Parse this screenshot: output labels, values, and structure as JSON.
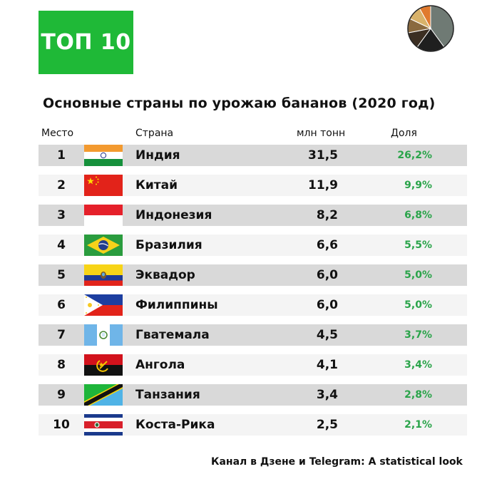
{
  "badge": "ТОП 10",
  "title": "Основные страны по урожаю бананов (2020 год)",
  "headers": {
    "rank": "Место",
    "country": "Страна",
    "value": "млн тонн",
    "share": "Доля"
  },
  "footer": "Канал в Дзене и Telegram: A statistical look",
  "logo_colors": [
    "#6f7a74",
    "#1f1f1f",
    "#3b2e22",
    "#8a6a3f",
    "#d8b26a",
    "#e07a2e"
  ],
  "chart_data": {
    "type": "table",
    "title": "Основные страны по урожаю бананов (2020 год)",
    "columns": [
      "Место",
      "Страна",
      "млн тонн",
      "Доля"
    ],
    "rows": [
      {
        "rank": "1",
        "country": "Индия",
        "value": "31,5",
        "share": "26,2%",
        "flag": "india"
      },
      {
        "rank": "2",
        "country": "Китай",
        "value": "11,9",
        "share": "9,9%",
        "flag": "china"
      },
      {
        "rank": "3",
        "country": "Индонезия",
        "value": "8,2",
        "share": "6,8%",
        "flag": "indonesia"
      },
      {
        "rank": "4",
        "country": "Бразилия",
        "value": "6,6",
        "share": "5,5%",
        "flag": "brazil"
      },
      {
        "rank": "5",
        "country": "Эквадор",
        "value": "6,0",
        "share": "5,0%",
        "flag": "ecuador"
      },
      {
        "rank": "6",
        "country": "Филиппины",
        "value": "6,0",
        "share": "5,0%",
        "flag": "philippines"
      },
      {
        "rank": "7",
        "country": "Гватемала",
        "value": "4,5",
        "share": "3,7%",
        "flag": "guatemala"
      },
      {
        "rank": "8",
        "country": "Ангола",
        "value": "4,1",
        "share": "3,4%",
        "flag": "angola"
      },
      {
        "rank": "9",
        "country": "Танзания",
        "value": "3,4",
        "share": "2,8%",
        "flag": "tanzania"
      },
      {
        "rank": "10",
        "country": "Коста-Рика",
        "value": "2,5",
        "share": "2,1%",
        "flag": "costa-rica"
      }
    ]
  }
}
